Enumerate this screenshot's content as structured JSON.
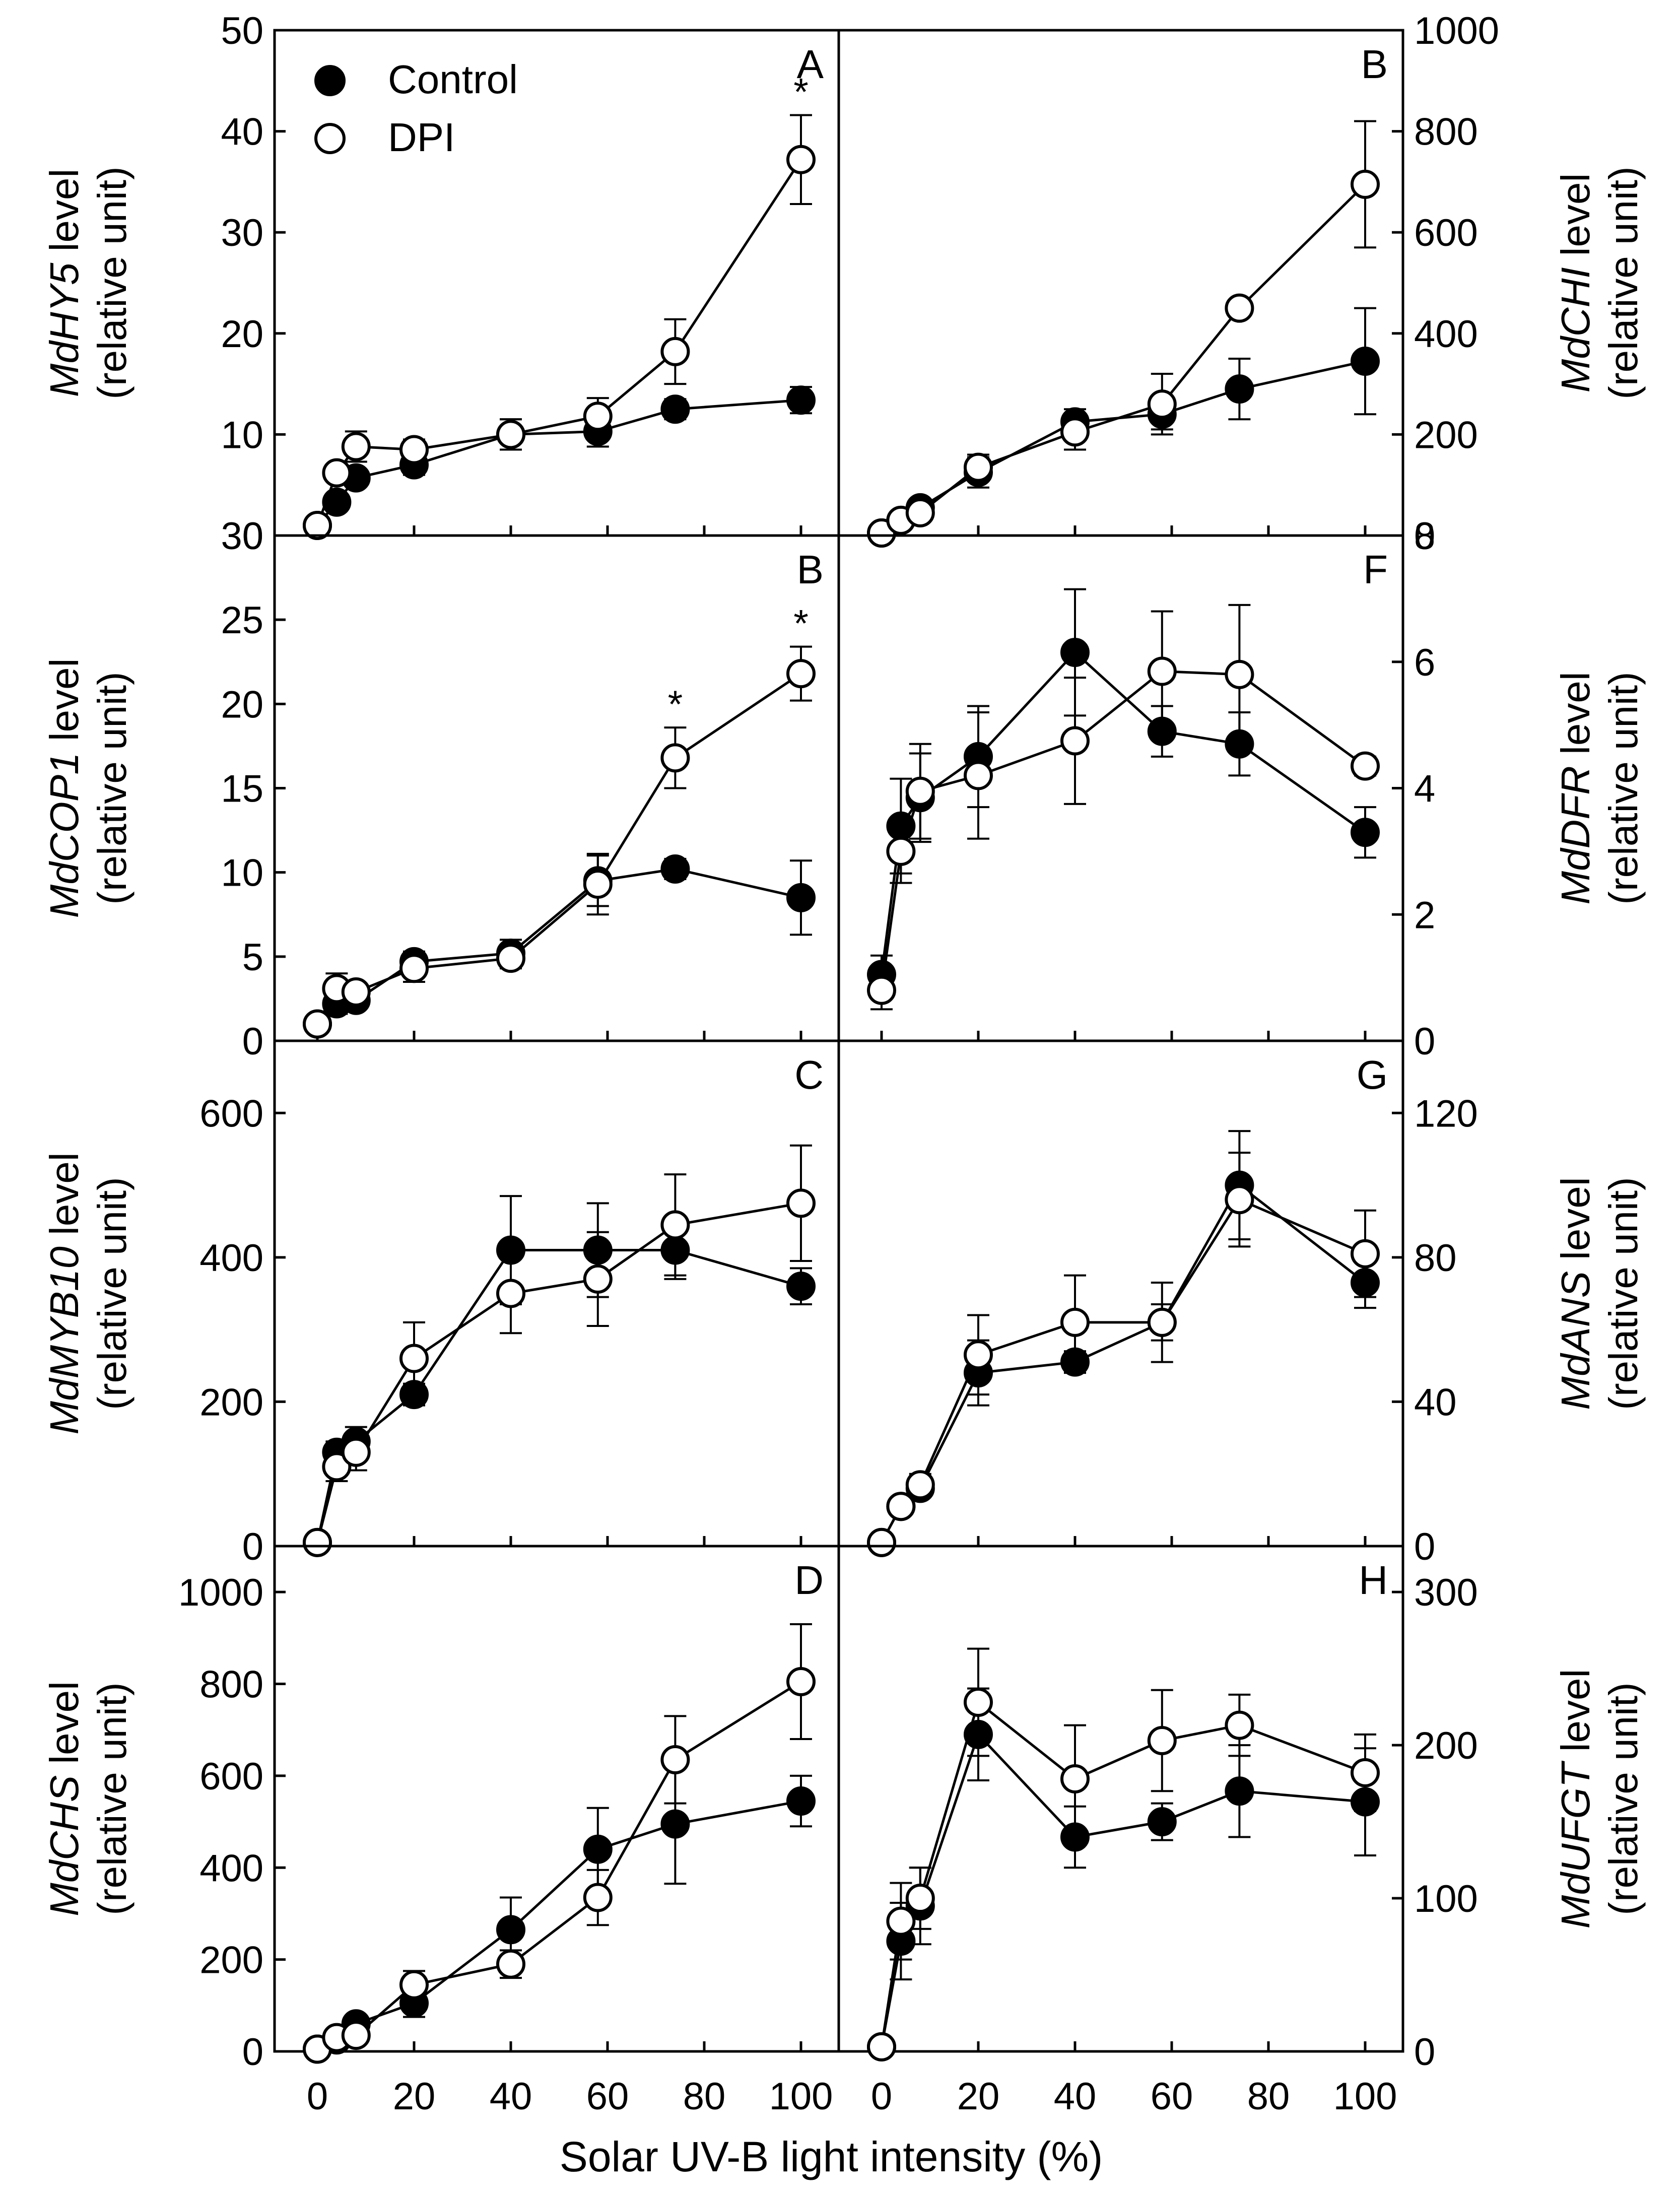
{
  "figure": {
    "xlabel": "Solar UV-B light intensity (%)",
    "xticks": [
      "0",
      "20",
      "40",
      "60",
      "80",
      "100"
    ],
    "legend": {
      "control": "Control",
      "dpi": "DPI"
    },
    "colors": {
      "control_fill": "#000000",
      "dpi_fill": "#ffffff",
      "line": "#000000"
    }
  },
  "chart_data": [
    {
      "type": "line",
      "panel": "A",
      "side": "left",
      "gene": "MdHY5",
      "ylabel_suffix": " level",
      "ylabel_unit": "(relative unit)",
      "ylim": [
        0,
        50
      ],
      "yticks": [
        0,
        10,
        20,
        30,
        40,
        50
      ],
      "yticklabels": [
        "0",
        "10",
        "20",
        "30",
        "40",
        "50"
      ],
      "x": [
        0,
        4,
        8,
        20,
        40,
        58,
        74,
        100
      ],
      "series": [
        {
          "name": "Control",
          "values": [
            1,
            3.3,
            5.7,
            7.0,
            10.0,
            10.3,
            12.5,
            13.4
          ],
          "errors": [
            0,
            0.5,
            0.8,
            1.0,
            1.5,
            1.5,
            1.0,
            1.3
          ]
        },
        {
          "name": "DPI",
          "values": [
            1,
            6.2,
            8.8,
            8.5,
            10.0,
            11.8,
            18.2,
            37.2
          ],
          "errors": [
            0,
            0.6,
            1.5,
            1.0,
            1.5,
            1.8,
            3.2,
            4.4
          ]
        }
      ],
      "significance": [
        {
          "x": 100,
          "label": "*"
        }
      ]
    },
    {
      "type": "line",
      "panel": "B",
      "side": "right",
      "gene": "MdCHI",
      "ylabel_suffix": " level",
      "ylabel_unit": "(relative unit)",
      "ylim": [
        0,
        1000
      ],
      "yticks": [
        0,
        200,
        400,
        600,
        800,
        1000
      ],
      "yticklabels": [
        "0",
        "200",
        "400",
        "600",
        "800",
        "1000"
      ],
      "x": [
        0,
        4,
        8,
        20,
        40,
        58,
        74,
        100
      ],
      "series": [
        {
          "name": "Control",
          "values": [
            5,
            30,
            55,
            125,
            225,
            240,
            290,
            345
          ],
          "errors": [
            0,
            8,
            10,
            30,
            25,
            30,
            60,
            105
          ]
        },
        {
          "name": "DPI",
          "values": [
            5,
            30,
            45,
            135,
            205,
            260,
            450,
            695
          ],
          "errors": [
            0,
            8,
            8,
            25,
            35,
            60,
            15,
            125
          ]
        }
      ],
      "significance": []
    },
    {
      "type": "line",
      "panel": "B",
      "side": "left",
      "gene": "MdCOP1",
      "ylabel_suffix": " level",
      "ylabel_unit": "(relative unit)",
      "ylim": [
        0,
        30
      ],
      "yticks": [
        0,
        5,
        10,
        15,
        20,
        25,
        30
      ],
      "yticklabels": [
        "0",
        "5",
        "10",
        "15",
        "20",
        "25",
        "30"
      ],
      "x": [
        0,
        4,
        8,
        20,
        40,
        58,
        74,
        100
      ],
      "series": [
        {
          "name": "Control",
          "values": [
            1,
            2.2,
            2.4,
            4.7,
            5.2,
            9.5,
            10.2,
            8.5
          ],
          "errors": [
            0,
            0.6,
            0.5,
            0.6,
            0.8,
            1.5,
            0.6,
            2.2
          ]
        },
        {
          "name": "DPI",
          "values": [
            1,
            3.1,
            2.9,
            4.3,
            4.9,
            9.3,
            16.8,
            21.8
          ],
          "errors": [
            0,
            0.9,
            0.5,
            0.8,
            0.6,
            1.8,
            1.8,
            1.6
          ]
        }
      ],
      "significance": [
        {
          "x": 74,
          "label": "*"
        },
        {
          "x": 100,
          "label": "*"
        }
      ]
    },
    {
      "type": "line",
      "panel": "F",
      "side": "right",
      "gene": "MdDFR",
      "ylabel_suffix": " level",
      "ylabel_unit": "(relative unit)",
      "ylim": [
        0,
        8
      ],
      "yticks": [
        0,
        2,
        4,
        6,
        8
      ],
      "yticklabels": [
        "0",
        "2",
        "4",
        "6",
        "8"
      ],
      "x": [
        0,
        4,
        8,
        20,
        40,
        58,
        74,
        100
      ],
      "series": [
        {
          "name": "Control",
          "values": [
            1.05,
            3.4,
            3.85,
            4.5,
            6.15,
            4.9,
            4.7,
            3.3
          ],
          "errors": [
            0.3,
            0.75,
            0.7,
            0.8,
            1.0,
            0.4,
            0.5,
            0.4
          ]
        },
        {
          "name": "DPI",
          "values": [
            0.8,
            3.0,
            3.95,
            4.2,
            4.75,
            5.85,
            5.8,
            4.35
          ],
          "errors": [
            0.3,
            0.5,
            0.75,
            1.0,
            1.0,
            0.95,
            1.1,
            0.15
          ]
        }
      ],
      "significance": []
    },
    {
      "type": "line",
      "panel": "C",
      "side": "left",
      "gene": "MdMYB10",
      "ylabel_suffix": " level",
      "ylabel_unit": "(relative unit)",
      "ylim": [
        0,
        700
      ],
      "yticks": [
        0,
        200,
        400,
        600
      ],
      "yticklabels": [
        "0",
        "200",
        "400",
        "600"
      ],
      "x": [
        0,
        4,
        8,
        20,
        40,
        58,
        74,
        100
      ],
      "series": [
        {
          "name": "Control",
          "values": [
            5,
            130,
            145,
            210,
            410,
            410,
            410,
            360
          ],
          "errors": [
            0,
            15,
            20,
            15,
            75,
            65,
            40,
            25
          ]
        },
        {
          "name": "DPI",
          "values": [
            5,
            110,
            130,
            260,
            350,
            370,
            445,
            475
          ],
          "errors": [
            0,
            20,
            25,
            50,
            55,
            65,
            70,
            80
          ]
        }
      ],
      "significance": []
    },
    {
      "type": "line",
      "panel": "G",
      "side": "right",
      "gene": "MdANS",
      "ylabel_suffix": " level",
      "ylabel_unit": "(relative unit)",
      "ylim": [
        0,
        140
      ],
      "yticks": [
        0,
        40,
        80,
        120
      ],
      "yticklabels": [
        "0",
        "40",
        "80",
        "120"
      ],
      "x": [
        0,
        4,
        8,
        20,
        40,
        58,
        74,
        100
      ],
      "series": [
        {
          "name": "Control",
          "values": [
            1,
            11,
            16,
            48,
            51,
            62,
            100,
            73
          ],
          "errors": [
            0,
            2,
            2,
            9,
            3,
            5,
            15,
            7
          ]
        },
        {
          "name": "DPI",
          "values": [
            1,
            11,
            17,
            53,
            62,
            62,
            96,
            81
          ],
          "errors": [
            0,
            2,
            3,
            11,
            13,
            11,
            13,
            12
          ]
        }
      ],
      "significance": []
    },
    {
      "type": "line",
      "panel": "D",
      "side": "left",
      "gene": "MdCHS",
      "ylabel_suffix": " level",
      "ylabel_unit": "(relative unit)",
      "ylim": [
        0,
        1100
      ],
      "yticks": [
        0,
        200,
        400,
        600,
        800,
        1000
      ],
      "yticklabels": [
        "0",
        "200",
        "400",
        "600",
        "800",
        "1000"
      ],
      "x": [
        0,
        4,
        8,
        20,
        40,
        58,
        74,
        100
      ],
      "series": [
        {
          "name": "Control",
          "values": [
            5,
            25,
            60,
            105,
            265,
            440,
            495,
            545
          ],
          "errors": [
            0,
            8,
            15,
            30,
            70,
            90,
            130,
            55
          ]
        },
        {
          "name": "DPI",
          "values": [
            5,
            30,
            35,
            145,
            190,
            335,
            635,
            805
          ],
          "errors": [
            0,
            10,
            10,
            30,
            30,
            60,
            95,
            125
          ]
        }
      ],
      "significance": []
    },
    {
      "type": "line",
      "panel": "H",
      "side": "right",
      "gene": "MdUFGT",
      "ylabel_suffix": " level",
      "ylabel_unit": "(relative unit)",
      "ylim": [
        0,
        330
      ],
      "yticks": [
        0,
        100,
        200,
        300
      ],
      "yticklabels": [
        "0",
        "100",
        "200",
        "300"
      ],
      "x": [
        0,
        4,
        8,
        20,
        40,
        58,
        74,
        100
      ],
      "series": [
        {
          "name": "Control",
          "values": [
            3,
            72,
            95,
            207,
            140,
            150,
            170,
            163
          ],
          "errors": [
            0,
            25,
            25,
            30,
            20,
            12,
            30,
            35
          ]
        },
        {
          "name": "DPI",
          "values": [
            3,
            85,
            100,
            228,
            178,
            203,
            213,
            182
          ],
          "errors": [
            0,
            25,
            20,
            35,
            35,
            33,
            20,
            25
          ]
        }
      ],
      "significance": []
    }
  ]
}
